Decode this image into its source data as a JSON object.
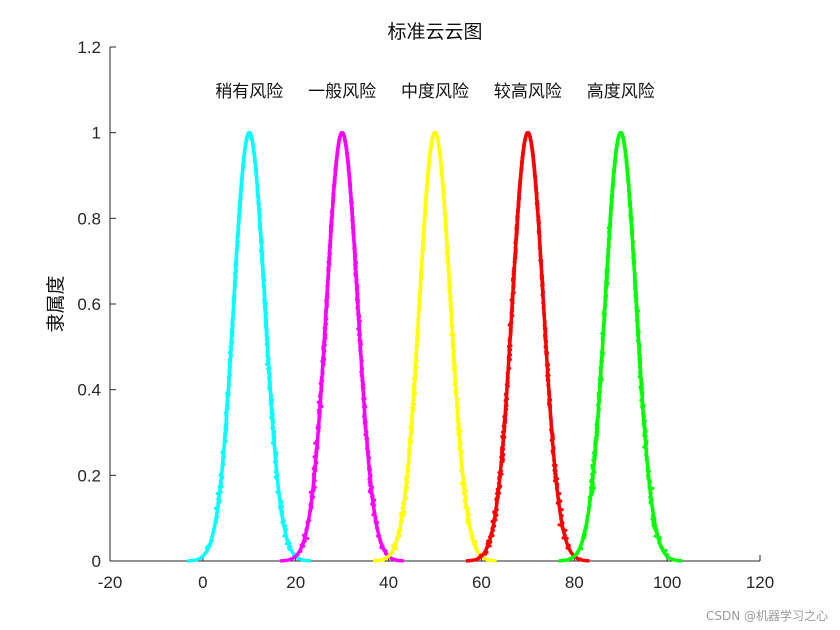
{
  "watermark": "CSDN @机器学习之心",
  "chart_data": {
    "type": "line",
    "title": "标准云云图",
    "xlabel": "",
    "ylabel": "隶属度",
    "xlim": [
      -20,
      120
    ],
    "ylim": [
      0,
      1.2
    ],
    "x_ticks": [
      "-20",
      "0",
      "20",
      "40",
      "60",
      "80",
      "100",
      "120"
    ],
    "y_ticks": [
      "0",
      "0.2",
      "0.4",
      "0.6",
      "0.8",
      "1",
      "1.2"
    ],
    "grid": false,
    "series": [
      {
        "name": "稍有风险",
        "color": "#00FFFF",
        "Ex": 10,
        "En": 3.333,
        "He": 0.1,
        "peak": 1.0
      },
      {
        "name": "一般风险",
        "color": "#FF00FF",
        "Ex": 30,
        "En": 3.333,
        "He": 0.1,
        "peak": 1.0
      },
      {
        "name": "中度风险",
        "color": "#FFFF00",
        "Ex": 50,
        "En": 3.333,
        "He": 0.1,
        "peak": 1.0
      },
      {
        "name": "较高风险",
        "color": "#FF0000",
        "Ex": 70,
        "En": 3.333,
        "He": 0.1,
        "peak": 1.0
      },
      {
        "name": "高度风险",
        "color": "#00FF00",
        "Ex": 90,
        "En": 3.333,
        "He": 0.1,
        "peak": 1.0
      }
    ],
    "label_y": 1.1
  }
}
